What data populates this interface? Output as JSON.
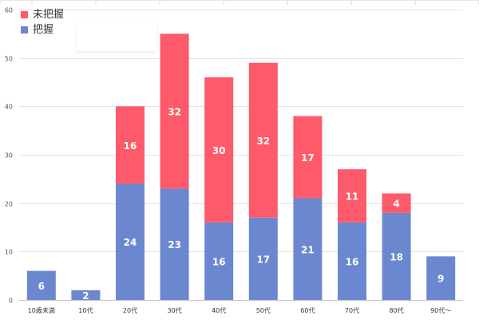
{
  "chart_data": {
    "type": "bar",
    "stacked": true,
    "categories": [
      "10歳未満",
      "10代",
      "20代",
      "30代",
      "40代",
      "50代",
      "60代",
      "70代",
      "80代",
      "90代〜"
    ],
    "series": [
      {
        "name": "把握",
        "color": "#6a87cf",
        "values": [
          6,
          2,
          24,
          23,
          16,
          17,
          21,
          16,
          18,
          9
        ]
      },
      {
        "name": "未把握",
        "color": "#fe5a6a",
        "values": [
          null,
          null,
          16,
          32,
          30,
          32,
          17,
          11,
          4,
          null
        ]
      }
    ],
    "ylim": [
      0,
      60
    ],
    "yticks": [
      0,
      10,
      20,
      30,
      40,
      50,
      60
    ],
    "grid": true,
    "legend_position": "top-left",
    "title": "",
    "xlabel": "",
    "ylabel": ""
  }
}
